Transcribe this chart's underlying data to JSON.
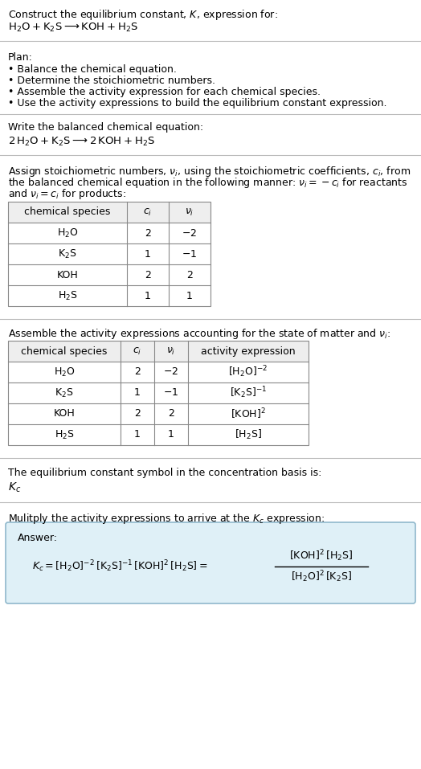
{
  "title_line1": "Construct the equilibrium constant, $K$, expression for:",
  "title_line2": "$\\mathrm{H_2O} + \\mathrm{K_2S} \\longrightarrow \\mathrm{KOH} + \\mathrm{H_2S}$",
  "plan_header": "Plan:",
  "plan_items": [
    "• Balance the chemical equation.",
    "• Determine the stoichiometric numbers.",
    "• Assemble the activity expression for each chemical species.",
    "• Use the activity expressions to build the equilibrium constant expression."
  ],
  "balanced_header": "Write the balanced chemical equation:",
  "balanced_eq": "$2\\,\\mathrm{H_2O} + \\mathrm{K_2S} \\longrightarrow 2\\,\\mathrm{KOH} + \\mathrm{H_2S}$",
  "stoich_lines": [
    "Assign stoichiometric numbers, $\\nu_i$, using the stoichiometric coefficients, $c_i$, from",
    "the balanced chemical equation in the following manner: $\\nu_i = -c_i$ for reactants",
    "and $\\nu_i = c_i$ for products:"
  ],
  "table1_cols": [
    "chemical species",
    "$c_i$",
    "$\\nu_i$"
  ],
  "table1_rows": [
    [
      "$\\mathrm{H_2O}$",
      "2",
      "$-2$"
    ],
    [
      "$\\mathrm{K_2S}$",
      "1",
      "$-1$"
    ],
    [
      "KOH",
      "2",
      "2"
    ],
    [
      "$\\mathrm{H_2S}$",
      "1",
      "1"
    ]
  ],
  "activity_header": "Assemble the activity expressions accounting for the state of matter and $\\nu_i$:",
  "table2_cols": [
    "chemical species",
    "$c_i$",
    "$\\nu_i$",
    "activity expression"
  ],
  "table2_rows": [
    [
      "$\\mathrm{H_2O}$",
      "2",
      "$-2$",
      "$[\\mathrm{H_2O}]^{-2}$"
    ],
    [
      "$\\mathrm{K_2S}$",
      "1",
      "$-1$",
      "$[\\mathrm{K_2S}]^{-1}$"
    ],
    [
      "KOH",
      "2",
      "2",
      "$[\\mathrm{KOH}]^{2}$"
    ],
    [
      "$\\mathrm{H_2S}$",
      "1",
      "1",
      "$[\\mathrm{H_2S}]$"
    ]
  ],
  "kc_header": "The equilibrium constant symbol in the concentration basis is:",
  "kc_symbol": "$K_c$",
  "multiply_header": "Mulitply the activity expressions to arrive at the $K_c$ expression:",
  "answer_label": "Answer:",
  "bg_color": "#ffffff",
  "answer_box_color": "#dff0f7",
  "answer_box_border": "#90b8cc",
  "separator_color": "#bbbbbb",
  "text_color": "#000000",
  "font_size": 9.0,
  "fig_width": 5.24,
  "fig_height": 9.57,
  "dpi": 100
}
